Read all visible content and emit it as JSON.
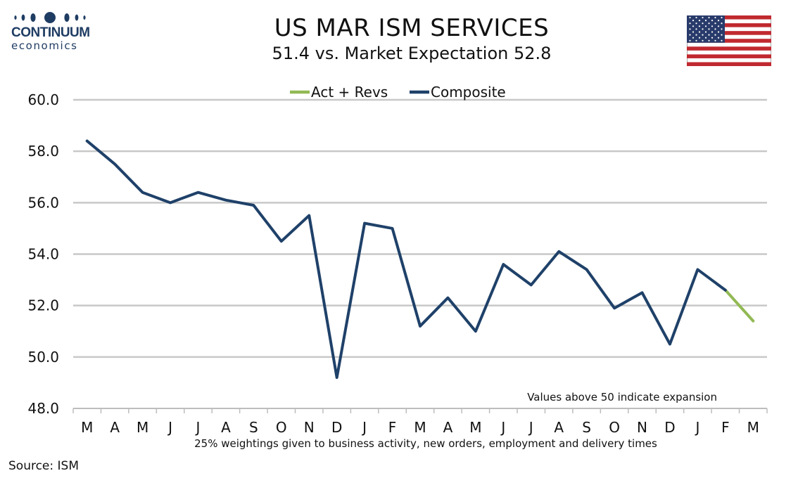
{
  "header": {
    "logo_line1": "CONTINUUM",
    "logo_line2": "economics"
  },
  "source": "Source: ISM",
  "colors": {
    "composite": "#1f4169",
    "act_revs": "#92b954",
    "grid": "#c8c8c8",
    "axis": "#bdbdbd",
    "logo": "#1f3d63"
  },
  "chart_data": {
    "type": "line",
    "title": "US MAR ISM SERVICES",
    "subtitle": "51.4 vs. Market Expectation 52.8",
    "xlabel": "25% weightings given to business activity, new orders, employment and delivery times",
    "ylabel": "",
    "ylim": [
      48,
      60
    ],
    "yticks": [
      "60.0",
      "58.0",
      "56.0",
      "54.0",
      "52.0",
      "50.0",
      "48.0"
    ],
    "grid": true,
    "legend_position": "top",
    "annotation": "Values above 50 indicate expansion",
    "categories": [
      "M",
      "A",
      "M",
      "J",
      "J",
      "A",
      "S",
      "O",
      "N",
      "D",
      "J",
      "F",
      "M",
      "A",
      "M",
      "J",
      "J",
      "A",
      "S",
      "O",
      "N",
      "D",
      "J",
      "F",
      "M"
    ],
    "series": [
      {
        "name": "Act + Revs",
        "color": "#92b954",
        "values": [
          null,
          null,
          null,
          null,
          null,
          null,
          null,
          null,
          null,
          null,
          null,
          null,
          null,
          null,
          null,
          null,
          null,
          null,
          null,
          null,
          null,
          null,
          null,
          52.6,
          51.4
        ]
      },
      {
        "name": "Composite",
        "color": "#1f4169",
        "values": [
          58.4,
          57.5,
          56.4,
          56.0,
          56.4,
          56.1,
          55.9,
          54.5,
          55.5,
          49.2,
          55.2,
          55.0,
          51.2,
          52.3,
          51.0,
          53.6,
          52.8,
          54.1,
          53.4,
          51.9,
          52.5,
          50.5,
          53.4,
          52.6,
          null
        ]
      }
    ]
  }
}
